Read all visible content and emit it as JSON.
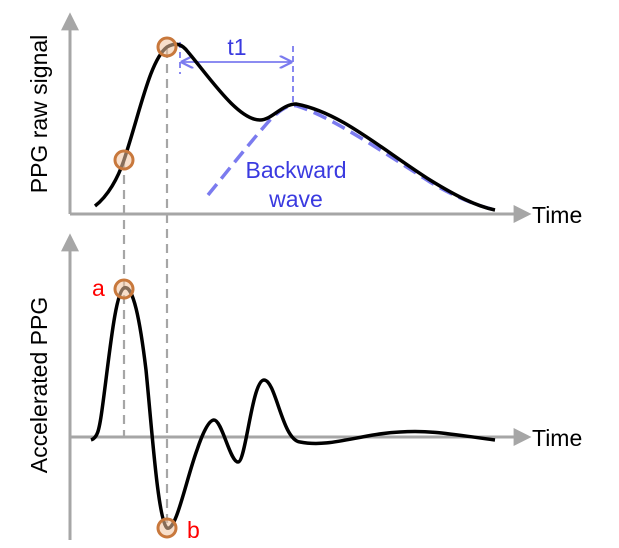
{
  "top_panel": {
    "ylabel": "PPG raw signal",
    "xlabel": "Time",
    "interval_label": "t1",
    "wave_label_line1": "Backward",
    "wave_label_line2": "wave"
  },
  "bottom_panel": {
    "ylabel": "Accelerated PPG",
    "xlabel": "Time",
    "point_a": "a",
    "point_b": "b"
  },
  "colors": {
    "axis": "#a6a6a6",
    "signal": "#000000",
    "backward_wave": "#7b7bef",
    "marker_fill": "#f2c5a0",
    "marker_stroke": "#c8783c",
    "point_label": "#ff0000",
    "guide": "#a6a6a6"
  }
}
